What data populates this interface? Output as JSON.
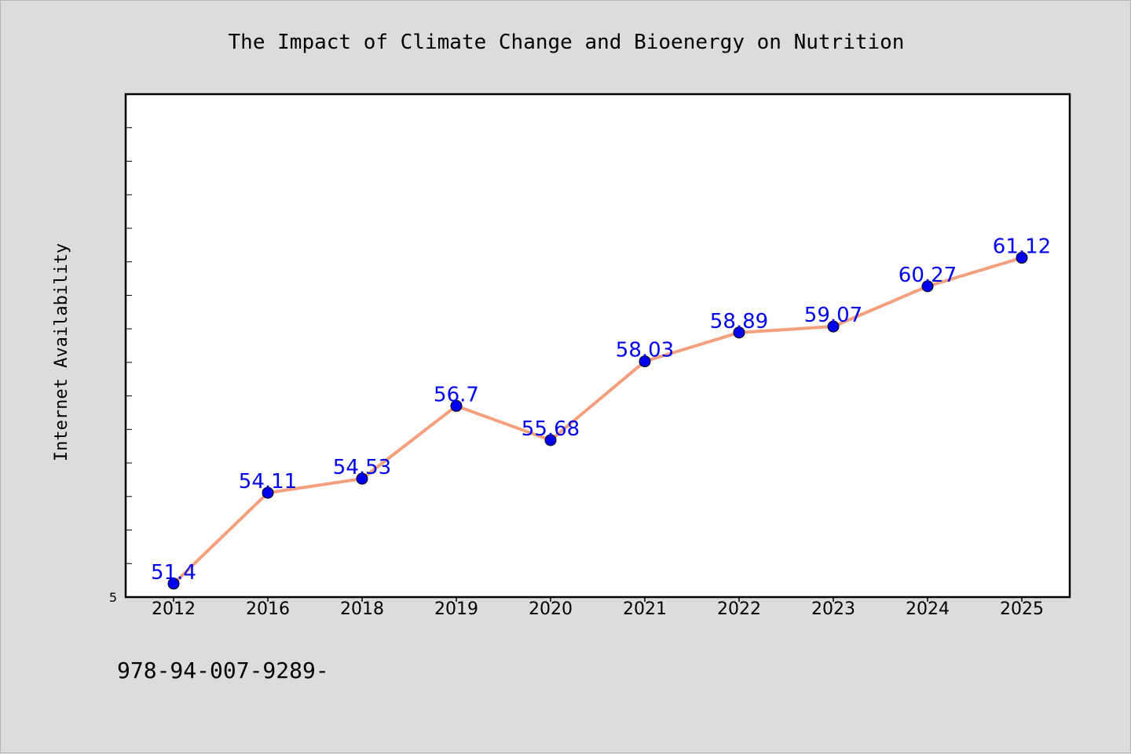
{
  "chart_data": {
    "type": "line",
    "title": "The Impact of Climate Change and Bioenergy on Nutrition",
    "xlabel": "",
    "ylabel": "Internet Availability",
    "categories": [
      "2012",
      "2016",
      "2018",
      "2019",
      "2020",
      "2021",
      "2022",
      "2023",
      "2024",
      "2025"
    ],
    "series": [
      {
        "values": [
          51.4,
          54.11,
          54.53,
          56.7,
          55.68,
          58.03,
          58.89,
          59.07,
          60.27,
          61.12
        ],
        "labels": [
          "51.4",
          "54.11",
          "54.53",
          "56.7",
          "55.68",
          "58.03",
          "58.89",
          "59.07",
          "60.27",
          "61.12"
        ],
        "line_color": "#f4a07e",
        "marker_color": "#0000ee",
        "label_color": "#0000ee"
      }
    ],
    "ylim": [
      51,
      66
    ],
    "y_tick_label": "5",
    "grid": false
  },
  "footer_text": "978-94-007-9289-",
  "colors": {
    "background": "#dcdcdc",
    "plot_area": "#ffffff",
    "axes": "#000000"
  }
}
